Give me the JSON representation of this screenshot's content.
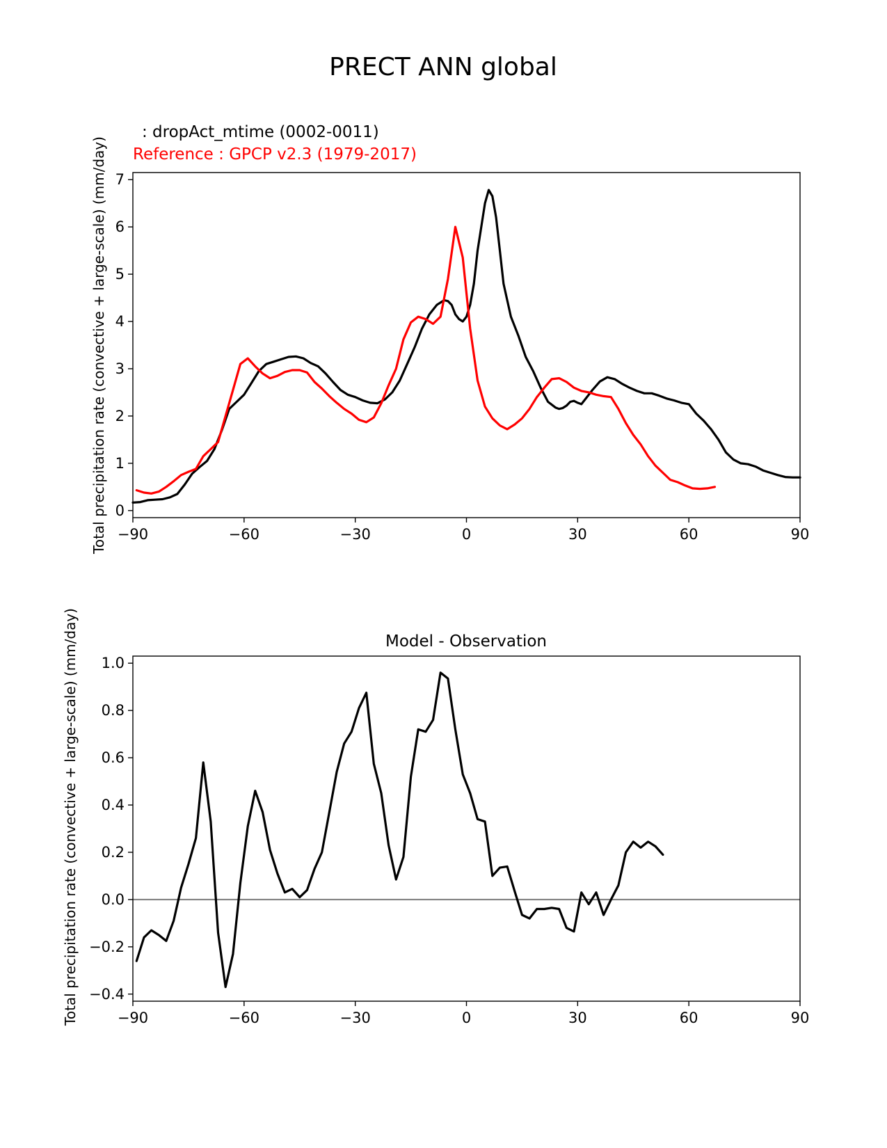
{
  "title": "PRECT ANN global",
  "colors": {
    "model": "#000000",
    "reference": "#ff0000",
    "zero_line": "#808080",
    "axes": "#000000"
  },
  "chart_data": [
    {
      "type": "line",
      "subtitle_model": " : dropAct_mtime (0002-0011)",
      "subtitle_reference": "Reference : GPCP v2.3 (1979-2017)",
      "xlabel": "",
      "ylabel": "Total precipitation rate (convective + large-scale) (mm/day)",
      "xlim": [
        -90,
        90
      ],
      "ylim": [
        -0.15,
        7.15
      ],
      "xticks": [
        -90,
        -60,
        -30,
        0,
        30,
        60,
        90
      ],
      "xtick_labels": [
        "−90",
        "−60",
        "−30",
        "0",
        "30",
        "60",
        "90"
      ],
      "yticks": [
        0,
        1,
        2,
        3,
        4,
        5,
        6,
        7
      ],
      "ytick_labels": [
        "0",
        "1",
        "2",
        "3",
        "4",
        "5",
        "6",
        "7"
      ],
      "series": [
        {
          "name": "dropAct_mtime (0002-0011)",
          "color": "#000000",
          "points": [
            [
              -90,
              0.17
            ],
            [
              -88,
              0.18
            ],
            [
              -86,
              0.22
            ],
            [
              -84,
              0.23
            ],
            [
              -82,
              0.24
            ],
            [
              -80,
              0.28
            ],
            [
              -78,
              0.35
            ],
            [
              -76,
              0.55
            ],
            [
              -74,
              0.78
            ],
            [
              -72,
              0.92
            ],
            [
              -70,
              1.05
            ],
            [
              -68,
              1.3
            ],
            [
              -66,
              1.7
            ],
            [
              -64,
              2.15
            ],
            [
              -62,
              2.3
            ],
            [
              -60,
              2.45
            ],
            [
              -58,
              2.7
            ],
            [
              -56,
              2.95
            ],
            [
              -54,
              3.1
            ],
            [
              -52,
              3.15
            ],
            [
              -50,
              3.2
            ],
            [
              -48,
              3.25
            ],
            [
              -46,
              3.26
            ],
            [
              -44,
              3.22
            ],
            [
              -42,
              3.12
            ],
            [
              -40,
              3.05
            ],
            [
              -38,
              2.9
            ],
            [
              -36,
              2.72
            ],
            [
              -34,
              2.55
            ],
            [
              -32,
              2.45
            ],
            [
              -30,
              2.4
            ],
            [
              -28,
              2.33
            ],
            [
              -26,
              2.28
            ],
            [
              -24,
              2.27
            ],
            [
              -22,
              2.35
            ],
            [
              -20,
              2.5
            ],
            [
              -18,
              2.75
            ],
            [
              -16,
              3.1
            ],
            [
              -14,
              3.45
            ],
            [
              -12,
              3.85
            ],
            [
              -10,
              4.15
            ],
            [
              -8,
              4.35
            ],
            [
              -6,
              4.45
            ],
            [
              -5,
              4.43
            ],
            [
              -4,
              4.35
            ],
            [
              -3,
              4.15
            ],
            [
              -2,
              4.05
            ],
            [
              -1,
              4.0
            ],
            [
              0,
              4.1
            ],
            [
              1,
              4.35
            ],
            [
              2,
              4.8
            ],
            [
              3,
              5.5
            ],
            [
              4,
              6.0
            ],
            [
              5,
              6.5
            ],
            [
              6,
              6.78
            ],
            [
              7,
              6.65
            ],
            [
              8,
              6.2
            ],
            [
              9,
              5.5
            ],
            [
              10,
              4.8
            ],
            [
              11,
              4.45
            ],
            [
              12,
              4.1
            ],
            [
              14,
              3.7
            ],
            [
              16,
              3.25
            ],
            [
              18,
              2.95
            ],
            [
              20,
              2.6
            ],
            [
              22,
              2.3
            ],
            [
              24,
              2.18
            ],
            [
              25,
              2.15
            ],
            [
              26,
              2.17
            ],
            [
              27,
              2.22
            ],
            [
              28,
              2.3
            ],
            [
              29,
              2.32
            ],
            [
              30,
              2.28
            ],
            [
              31,
              2.25
            ],
            [
              32,
              2.35
            ],
            [
              34,
              2.55
            ],
            [
              36,
              2.73
            ],
            [
              38,
              2.82
            ],
            [
              40,
              2.78
            ],
            [
              42,
              2.68
            ],
            [
              44,
              2.6
            ],
            [
              46,
              2.53
            ],
            [
              48,
              2.48
            ],
            [
              50,
              2.48
            ],
            [
              52,
              2.43
            ],
            [
              54,
              2.37
            ],
            [
              56,
              2.33
            ],
            [
              58,
              2.28
            ],
            [
              60,
              2.25
            ],
            [
              62,
              2.05
            ],
            [
              64,
              1.9
            ],
            [
              66,
              1.72
            ],
            [
              68,
              1.5
            ],
            [
              70,
              1.23
            ],
            [
              72,
              1.08
            ],
            [
              74,
              1.0
            ],
            [
              76,
              0.98
            ],
            [
              78,
              0.93
            ],
            [
              80,
              0.85
            ],
            [
              82,
              0.8
            ],
            [
              84,
              0.75
            ],
            [
              86,
              0.71
            ],
            [
              88,
              0.7
            ],
            [
              90,
              0.7
            ]
          ]
        },
        {
          "name": "GPCP v2.3 (1979-2017)",
          "color": "#ff0000",
          "points": [
            [
              -89,
              0.43
            ],
            [
              -87,
              0.38
            ],
            [
              -85,
              0.36
            ],
            [
              -83,
              0.4
            ],
            [
              -81,
              0.5
            ],
            [
              -79,
              0.62
            ],
            [
              -77,
              0.75
            ],
            [
              -75,
              0.82
            ],
            [
              -73,
              0.88
            ],
            [
              -71,
              1.15
            ],
            [
              -69,
              1.3
            ],
            [
              -67,
              1.45
            ],
            [
              -65,
              2.0
            ],
            [
              -63,
              2.55
            ],
            [
              -61,
              3.1
            ],
            [
              -59,
              3.22
            ],
            [
              -57,
              3.05
            ],
            [
              -55,
              2.9
            ],
            [
              -53,
              2.8
            ],
            [
              -51,
              2.85
            ],
            [
              -49,
              2.93
            ],
            [
              -47,
              2.97
            ],
            [
              -45,
              2.97
            ],
            [
              -43,
              2.92
            ],
            [
              -41,
              2.72
            ],
            [
              -39,
              2.58
            ],
            [
              -37,
              2.42
            ],
            [
              -35,
              2.28
            ],
            [
              -33,
              2.15
            ],
            [
              -31,
              2.05
            ],
            [
              -29,
              1.92
            ],
            [
              -27,
              1.87
            ],
            [
              -25,
              1.97
            ],
            [
              -23,
              2.27
            ],
            [
              -21,
              2.65
            ],
            [
              -19,
              3.0
            ],
            [
              -17,
              3.62
            ],
            [
              -15,
              3.98
            ],
            [
              -13,
              4.1
            ],
            [
              -11,
              4.05
            ],
            [
              -9,
              3.95
            ],
            [
              -7,
              4.1
            ],
            [
              -5,
              4.9
            ],
            [
              -3,
              6.0
            ],
            [
              -1,
              5.35
            ],
            [
              1,
              3.85
            ],
            [
              3,
              2.75
            ],
            [
              5,
              2.2
            ],
            [
              7,
              1.95
            ],
            [
              9,
              1.8
            ],
            [
              11,
              1.72
            ],
            [
              13,
              1.82
            ],
            [
              15,
              1.95
            ],
            [
              17,
              2.15
            ],
            [
              19,
              2.4
            ],
            [
              21,
              2.6
            ],
            [
              23,
              2.78
            ],
            [
              25,
              2.8
            ],
            [
              27,
              2.72
            ],
            [
              29,
              2.6
            ],
            [
              31,
              2.53
            ],
            [
              33,
              2.5
            ],
            [
              35,
              2.45
            ],
            [
              37,
              2.42
            ],
            [
              39,
              2.4
            ],
            [
              41,
              2.15
            ],
            [
              43,
              1.85
            ],
            [
              45,
              1.6
            ],
            [
              47,
              1.4
            ],
            [
              49,
              1.15
            ],
            [
              51,
              0.95
            ],
            [
              53,
              0.8
            ],
            [
              55,
              0.65
            ],
            [
              57,
              0.6
            ],
            [
              59,
              0.53
            ],
            [
              61,
              0.47
            ],
            [
              63,
              0.46
            ],
            [
              65,
              0.47
            ],
            [
              67,
              0.5
            ]
          ]
        }
      ]
    },
    {
      "type": "line",
      "title": "Model - Observation",
      "xlabel": "",
      "ylabel": "Total precipitation rate (convective + large-scale) (mm/day)",
      "xlim": [
        -90,
        90
      ],
      "ylim": [
        -0.43,
        1.03
      ],
      "xticks": [
        -90,
        -60,
        -30,
        0,
        30,
        60,
        90
      ],
      "xtick_labels": [
        "−90",
        "−60",
        "−30",
        "0",
        "30",
        "60",
        "90"
      ],
      "yticks": [
        -0.4,
        -0.2,
        0.0,
        0.2,
        0.4,
        0.6,
        0.8,
        1.0
      ],
      "ytick_labels": [
        "−0.4",
        "−0.2",
        "0.0",
        "0.2",
        "0.4",
        "0.6",
        "0.8",
        "1.0"
      ],
      "reference_line": 0.0,
      "series": [
        {
          "name": "Model - Observation",
          "color": "#000000",
          "points": [
            [
              -89,
              -0.26
            ],
            [
              -87,
              -0.16
            ],
            [
              -85,
              -0.13
            ],
            [
              -83,
              -0.15
            ],
            [
              -81,
              -0.175
            ],
            [
              -79,
              -0.09
            ],
            [
              -77,
              0.05
            ],
            [
              -75,
              0.15
            ],
            [
              -73,
              0.26
            ],
            [
              -71,
              0.58
            ],
            [
              -69,
              0.33
            ],
            [
              -67,
              -0.14
            ],
            [
              -65,
              -0.37
            ],
            [
              -63,
              -0.23
            ],
            [
              -61,
              0.07
            ],
            [
              -59,
              0.31
            ],
            [
              -57,
              0.46
            ],
            [
              -55,
              0.37
            ],
            [
              -53,
              0.21
            ],
            [
              -51,
              0.11
            ],
            [
              -49,
              0.03
            ],
            [
              -47,
              0.045
            ],
            [
              -45,
              0.01
            ],
            [
              -43,
              0.04
            ],
            [
              -41,
              0.13
            ],
            [
              -39,
              0.2
            ],
            [
              -37,
              0.37
            ],
            [
              -35,
              0.54
            ],
            [
              -33,
              0.66
            ],
            [
              -31,
              0.71
            ],
            [
              -29,
              0.81
            ],
            [
              -27,
              0.875
            ],
            [
              -25,
              0.575
            ],
            [
              -23,
              0.45
            ],
            [
              -21,
              0.23
            ],
            [
              -19,
              0.085
            ],
            [
              -17,
              0.18
            ],
            [
              -15,
              0.52
            ],
            [
              -13,
              0.72
            ],
            [
              -11,
              0.71
            ],
            [
              -9,
              0.76
            ],
            [
              -7,
              0.96
            ],
            [
              -5,
              0.935
            ],
            [
              -3,
              0.72
            ],
            [
              -1,
              0.53
            ],
            [
              1,
              0.45
            ],
            [
              3,
              0.34
            ],
            [
              5,
              0.33
            ],
            [
              7,
              0.1
            ],
            [
              9,
              0.135
            ],
            [
              11,
              0.14
            ],
            [
              13,
              0.035
            ],
            [
              15,
              -0.065
            ],
            [
              17,
              -0.08
            ],
            [
              19,
              -0.04
            ],
            [
              21,
              -0.04
            ],
            [
              23,
              -0.035
            ],
            [
              25,
              -0.04
            ],
            [
              27,
              -0.12
            ],
            [
              29,
              -0.135
            ],
            [
              31,
              0.03
            ],
            [
              33,
              -0.02
            ],
            [
              35,
              0.03
            ],
            [
              37,
              -0.065
            ],
            [
              39,
              0.0
            ],
            [
              41,
              0.06
            ],
            [
              43,
              0.2
            ],
            [
              45,
              0.245
            ],
            [
              47,
              0.22
            ],
            [
              49,
              0.245
            ],
            [
              51,
              0.225
            ],
            [
              53,
              0.19
            ]
          ]
        }
      ]
    }
  ]
}
